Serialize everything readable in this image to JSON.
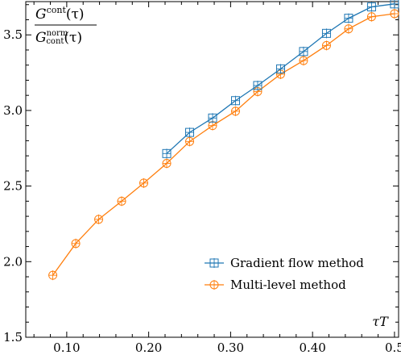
{
  "chart_data": {
    "type": "line",
    "xlabel": "τT",
    "ylabel": {
      "numerator": "G",
      "numerator_sup": "cont",
      "numerator_arg": "(τ)",
      "denominator": "G",
      "denominator_sup": "norm",
      "denominator_sub": "cont",
      "denominator_arg": "(τ)"
    },
    "xlim": [
      0.05,
      0.505
    ],
    "ylim": [
      1.5,
      3.72
    ],
    "x_ticks": [
      0.1,
      0.2,
      0.3,
      0.4,
      0.5
    ],
    "x_tick_labels": [
      "0.10",
      "0.20",
      "0.30",
      "0.40",
      "0.5"
    ],
    "y_ticks": [
      1.5,
      2.0,
      2.5,
      3.0,
      3.5
    ],
    "y_tick_labels": [
      "1.5",
      "2.0",
      "2.5",
      "3.0",
      "3.5"
    ],
    "grid": false,
    "legend_position": "bottom-right",
    "series": [
      {
        "name": "Gradient flow method",
        "color": "#1f77b4",
        "marker": "square",
        "x": [
          0.222,
          0.25,
          0.278,
          0.306,
          0.333,
          0.361,
          0.389,
          0.417,
          0.444,
          0.472,
          0.5
        ],
        "y": [
          2.715,
          2.855,
          2.95,
          3.065,
          3.165,
          3.275,
          3.39,
          3.51,
          3.61,
          3.685,
          3.705
        ]
      },
      {
        "name": "Multi-level method",
        "color": "#ff7f0e",
        "marker": "circle",
        "x": [
          0.083,
          0.111,
          0.139,
          0.167,
          0.194,
          0.222,
          0.25,
          0.278,
          0.306,
          0.333,
          0.361,
          0.389,
          0.417,
          0.444,
          0.472,
          0.5
        ],
        "y": [
          1.91,
          2.12,
          2.28,
          2.4,
          2.52,
          2.65,
          2.795,
          2.9,
          2.995,
          3.125,
          3.24,
          3.33,
          3.43,
          3.54,
          3.62,
          3.64
        ]
      }
    ]
  }
}
